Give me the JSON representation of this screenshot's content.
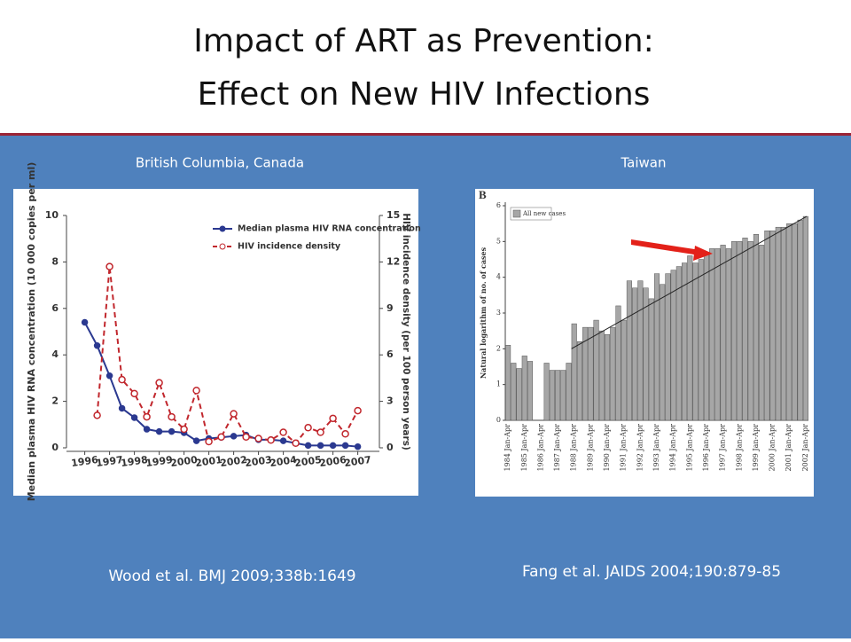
{
  "title_line1": "Impact of ART as Prevention:",
  "title_line2": "Effect on New HIV Infections",
  "left_caption": "British Columbia, Canada",
  "right_caption": "Taiwan",
  "left_citation": "Wood et al. BMJ 2009;338b:1649",
  "right_citation": "Fang et al. JAIDS 2004;190:879-85",
  "chart_data": [
    {
      "type": "line",
      "ylabel": "Median plasma HIV RNA concentration (10 000 copies per ml)",
      "y2label": "HIV incidence density (per 100 person years)",
      "x": [
        1996,
        1996.5,
        1997,
        1997.5,
        1998,
        1998.5,
        1999,
        1999.5,
        2000,
        2000.5,
        2001,
        2001.5,
        2002,
        2002.5,
        2003,
        2003.5,
        2004,
        2004.5,
        2005,
        2005.5,
        2006,
        2006.5,
        2007
      ],
      "xlim": [
        1995.8,
        2007.3
      ],
      "xticks": [
        1996,
        1997,
        1998,
        1999,
        2000,
        2001,
        2002,
        2003,
        2004,
        2005,
        2006,
        2007
      ],
      "ylim": [
        0,
        10
      ],
      "yticks": [
        0,
        2,
        4,
        6,
        8,
        10
      ],
      "y2lim": [
        0,
        15
      ],
      "y2ticks": [
        0,
        3,
        6,
        9,
        12,
        15
      ],
      "legend": "top-right",
      "series": [
        {
          "name": "Median plasma HIV RNA concentration",
          "color": "#2b3990",
          "values": [
            5.4,
            4.4,
            3.1,
            1.7,
            1.3,
            0.8,
            0.7,
            0.7,
            0.65,
            0.3,
            0.4,
            0.45,
            0.5,
            0.55,
            0.35,
            0.35,
            0.3,
            0.2,
            0.1,
            0.1,
            0.1,
            0.1,
            0.05
          ]
        },
        {
          "name": "HIV incidence density",
          "color": "#c1272d",
          "axis": "y2",
          "values": [
            null,
            2.1,
            11.7,
            4.4,
            3.5,
            2.0,
            4.2,
            2.0,
            1.2,
            3.7,
            0.4,
            0.7,
            2.2,
            0.7,
            0.6,
            0.5,
            1.0,
            0.3,
            1.3,
            1.0,
            1.9,
            0.9,
            2.4
          ]
        }
      ]
    },
    {
      "type": "bar",
      "panel": "B",
      "ylabel": "Natural logarithm of no. of cases",
      "legend": "All new cases",
      "color": "#a6a6a6",
      "categories": [
        "1984 Jan-Apr",
        null,
        null,
        "1985 Jan-Apr",
        null,
        null,
        "1986 Jan-Apr",
        null,
        null,
        "1987 Jan-Apr",
        null,
        null,
        "1988 Jan-Apr",
        null,
        null,
        "1989 Jan-Apr",
        null,
        null,
        "1990 Jan-Apr",
        null,
        null,
        "1991 Jan-Apr",
        null,
        null,
        "1992 Jan-Apr",
        null,
        null,
        "1993 Jan-Apr",
        null,
        null,
        "1994 Jan-Apr",
        null,
        null,
        "1995 Jan-Apr",
        null,
        null,
        "1996 Jan-Apr",
        null,
        null,
        "1997 Jan-Apr",
        null,
        null,
        "1998 Jan-Apr",
        null,
        null,
        "1999 Jan-Apr",
        null,
        null,
        "2000 Jan-Apr",
        null,
        null,
        "2001 Jan-Apr",
        null,
        null,
        "2002 Jan-Apr"
      ],
      "values": [
        2.1,
        1.6,
        1.45,
        1.8,
        1.65,
        null,
        null,
        1.6,
        1.4,
        1.4,
        1.4,
        1.6,
        2.7,
        2.2,
        2.6,
        2.6,
        2.8,
        2.5,
        2.4,
        2.6,
        3.2,
        2.8,
        3.9,
        3.7,
        3.9,
        3.7,
        3.4,
        4.1,
        3.8,
        4.1,
        4.2,
        4.3,
        4.4,
        4.6,
        4.4,
        4.5,
        4.7,
        4.8,
        4.8,
        4.9,
        4.8,
        5.0,
        5.0,
        5.1,
        5.0,
        5.2,
        4.9,
        5.3,
        5.3,
        5.4,
        5.4,
        5.5,
        5.5,
        5.6,
        5.7
      ],
      "ylim": [
        0,
        6
      ],
      "yticks": [
        0,
        1,
        2,
        3,
        4,
        5,
        6
      ]
    }
  ]
}
